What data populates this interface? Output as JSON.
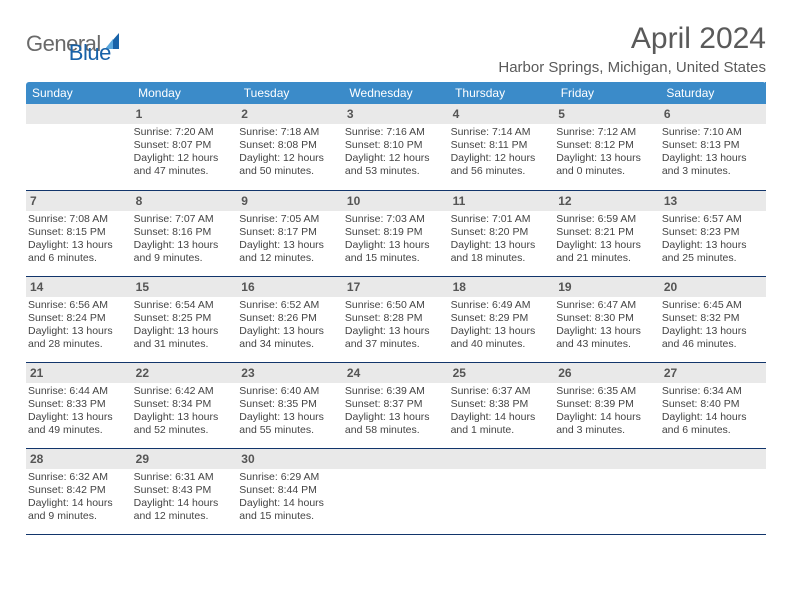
{
  "brand": {
    "part1": "General",
    "part2": "Blue"
  },
  "title": "April 2024",
  "location": "Harbor Springs, Michigan, United States",
  "colors": {
    "header_bg": "#3b8bc9",
    "header_text": "#ffffff",
    "daynum_bg": "#e9e9e9",
    "border": "#12356b",
    "text": "#444444",
    "title_text": "#5a5a5a",
    "logo_gray": "#6a6a6a",
    "logo_blue": "#1862a8"
  },
  "day_labels": [
    "Sunday",
    "Monday",
    "Tuesday",
    "Wednesday",
    "Thursday",
    "Friday",
    "Saturday"
  ],
  "weeks": [
    [
      {
        "n": "",
        "sr": "",
        "ss": "",
        "dl": ""
      },
      {
        "n": "1",
        "sr": "Sunrise: 7:20 AM",
        "ss": "Sunset: 8:07 PM",
        "dl": "Daylight: 12 hours and 47 minutes."
      },
      {
        "n": "2",
        "sr": "Sunrise: 7:18 AM",
        "ss": "Sunset: 8:08 PM",
        "dl": "Daylight: 12 hours and 50 minutes."
      },
      {
        "n": "3",
        "sr": "Sunrise: 7:16 AM",
        "ss": "Sunset: 8:10 PM",
        "dl": "Daylight: 12 hours and 53 minutes."
      },
      {
        "n": "4",
        "sr": "Sunrise: 7:14 AM",
        "ss": "Sunset: 8:11 PM",
        "dl": "Daylight: 12 hours and 56 minutes."
      },
      {
        "n": "5",
        "sr": "Sunrise: 7:12 AM",
        "ss": "Sunset: 8:12 PM",
        "dl": "Daylight: 13 hours and 0 minutes."
      },
      {
        "n": "6",
        "sr": "Sunrise: 7:10 AM",
        "ss": "Sunset: 8:13 PM",
        "dl": "Daylight: 13 hours and 3 minutes."
      }
    ],
    [
      {
        "n": "7",
        "sr": "Sunrise: 7:08 AM",
        "ss": "Sunset: 8:15 PM",
        "dl": "Daylight: 13 hours and 6 minutes."
      },
      {
        "n": "8",
        "sr": "Sunrise: 7:07 AM",
        "ss": "Sunset: 8:16 PM",
        "dl": "Daylight: 13 hours and 9 minutes."
      },
      {
        "n": "9",
        "sr": "Sunrise: 7:05 AM",
        "ss": "Sunset: 8:17 PM",
        "dl": "Daylight: 13 hours and 12 minutes."
      },
      {
        "n": "10",
        "sr": "Sunrise: 7:03 AM",
        "ss": "Sunset: 8:19 PM",
        "dl": "Daylight: 13 hours and 15 minutes."
      },
      {
        "n": "11",
        "sr": "Sunrise: 7:01 AM",
        "ss": "Sunset: 8:20 PM",
        "dl": "Daylight: 13 hours and 18 minutes."
      },
      {
        "n": "12",
        "sr": "Sunrise: 6:59 AM",
        "ss": "Sunset: 8:21 PM",
        "dl": "Daylight: 13 hours and 21 minutes."
      },
      {
        "n": "13",
        "sr": "Sunrise: 6:57 AM",
        "ss": "Sunset: 8:23 PM",
        "dl": "Daylight: 13 hours and 25 minutes."
      }
    ],
    [
      {
        "n": "14",
        "sr": "Sunrise: 6:56 AM",
        "ss": "Sunset: 8:24 PM",
        "dl": "Daylight: 13 hours and 28 minutes."
      },
      {
        "n": "15",
        "sr": "Sunrise: 6:54 AM",
        "ss": "Sunset: 8:25 PM",
        "dl": "Daylight: 13 hours and 31 minutes."
      },
      {
        "n": "16",
        "sr": "Sunrise: 6:52 AM",
        "ss": "Sunset: 8:26 PM",
        "dl": "Daylight: 13 hours and 34 minutes."
      },
      {
        "n": "17",
        "sr": "Sunrise: 6:50 AM",
        "ss": "Sunset: 8:28 PM",
        "dl": "Daylight: 13 hours and 37 minutes."
      },
      {
        "n": "18",
        "sr": "Sunrise: 6:49 AM",
        "ss": "Sunset: 8:29 PM",
        "dl": "Daylight: 13 hours and 40 minutes."
      },
      {
        "n": "19",
        "sr": "Sunrise: 6:47 AM",
        "ss": "Sunset: 8:30 PM",
        "dl": "Daylight: 13 hours and 43 minutes."
      },
      {
        "n": "20",
        "sr": "Sunrise: 6:45 AM",
        "ss": "Sunset: 8:32 PM",
        "dl": "Daylight: 13 hours and 46 minutes."
      }
    ],
    [
      {
        "n": "21",
        "sr": "Sunrise: 6:44 AM",
        "ss": "Sunset: 8:33 PM",
        "dl": "Daylight: 13 hours and 49 minutes."
      },
      {
        "n": "22",
        "sr": "Sunrise: 6:42 AM",
        "ss": "Sunset: 8:34 PM",
        "dl": "Daylight: 13 hours and 52 minutes."
      },
      {
        "n": "23",
        "sr": "Sunrise: 6:40 AM",
        "ss": "Sunset: 8:35 PM",
        "dl": "Daylight: 13 hours and 55 minutes."
      },
      {
        "n": "24",
        "sr": "Sunrise: 6:39 AM",
        "ss": "Sunset: 8:37 PM",
        "dl": "Daylight: 13 hours and 58 minutes."
      },
      {
        "n": "25",
        "sr": "Sunrise: 6:37 AM",
        "ss": "Sunset: 8:38 PM",
        "dl": "Daylight: 14 hours and 1 minute."
      },
      {
        "n": "26",
        "sr": "Sunrise: 6:35 AM",
        "ss": "Sunset: 8:39 PM",
        "dl": "Daylight: 14 hours and 3 minutes."
      },
      {
        "n": "27",
        "sr": "Sunrise: 6:34 AM",
        "ss": "Sunset: 8:40 PM",
        "dl": "Daylight: 14 hours and 6 minutes."
      }
    ],
    [
      {
        "n": "28",
        "sr": "Sunrise: 6:32 AM",
        "ss": "Sunset: 8:42 PM",
        "dl": "Daylight: 14 hours and 9 minutes."
      },
      {
        "n": "29",
        "sr": "Sunrise: 6:31 AM",
        "ss": "Sunset: 8:43 PM",
        "dl": "Daylight: 14 hours and 12 minutes."
      },
      {
        "n": "30",
        "sr": "Sunrise: 6:29 AM",
        "ss": "Sunset: 8:44 PM",
        "dl": "Daylight: 14 hours and 15 minutes."
      },
      {
        "n": "",
        "sr": "",
        "ss": "",
        "dl": ""
      },
      {
        "n": "",
        "sr": "",
        "ss": "",
        "dl": ""
      },
      {
        "n": "",
        "sr": "",
        "ss": "",
        "dl": ""
      },
      {
        "n": "",
        "sr": "",
        "ss": "",
        "dl": ""
      }
    ]
  ]
}
